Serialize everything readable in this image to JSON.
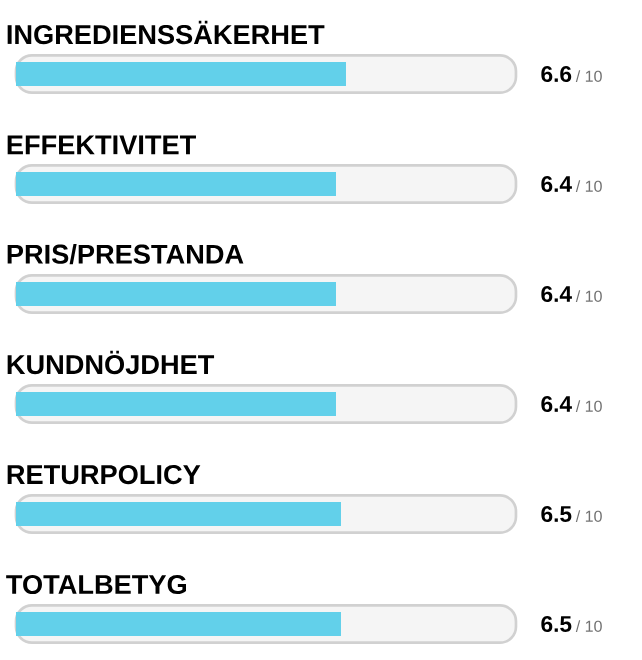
{
  "chart_data": {
    "type": "bar",
    "orientation": "horizontal",
    "categories": [
      "INGREDIENSSÄKERHET",
      "EFFEKTIVITET",
      "PRIS/PRESTANDA",
      "KUNDNÖJDHET",
      "RETURPOLICY",
      "TOTALBETYG"
    ],
    "values": [
      6.6,
      6.4,
      6.4,
      6.4,
      6.5,
      6.5
    ],
    "data_labels": true,
    "annotations": [
      "/ 10",
      "/ 10",
      "/ 10",
      "/ 10",
      "/ 10",
      "/ 10"
    ],
    "color": "#62d0ea",
    "xlim": [
      0,
      10
    ]
  }
}
